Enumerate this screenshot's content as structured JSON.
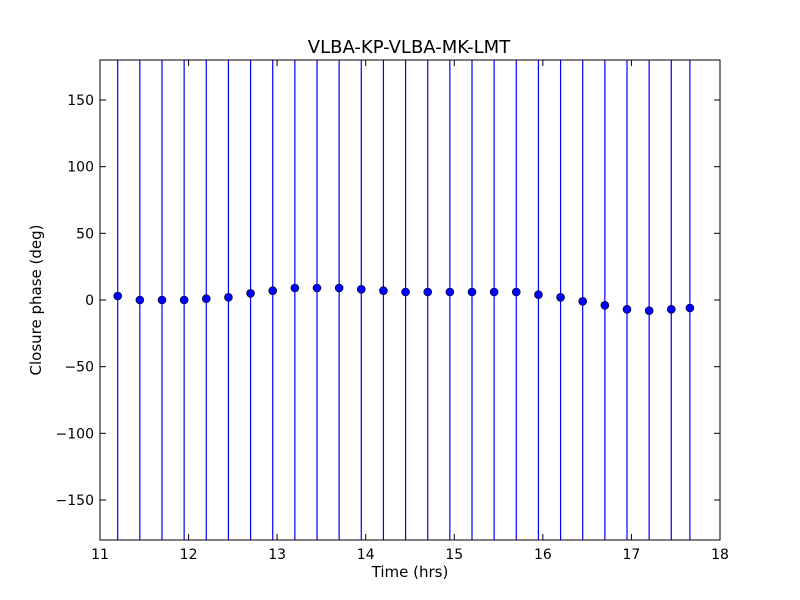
{
  "chart_data": {
    "type": "scatter",
    "title": "VLBA-KP-VLBA-MK-LMT",
    "xlabel": "Time (hrs)",
    "ylabel": "Closure phase (deg)",
    "xlim": [
      11,
      18
    ],
    "ylim": [
      -180,
      180
    ],
    "xticks": [
      11,
      12,
      13,
      14,
      15,
      16,
      17,
      18
    ],
    "yticks": [
      -150,
      -100,
      -50,
      0,
      50,
      100,
      150
    ],
    "ytick_labels": [
      "−150",
      "−100",
      "−50",
      "0",
      "50",
      "100",
      "150"
    ],
    "grid": false,
    "series": [
      {
        "marker": "circle",
        "color": "#0000ff",
        "errorbar_color": "#0000ff",
        "points": [
          {
            "x": 11.2,
            "y": 3,
            "err_low": -180,
            "err_high": 180
          },
          {
            "x": 11.45,
            "y": 0,
            "err_low": -180,
            "err_high": 180
          },
          {
            "x": 11.7,
            "y": 0,
            "err_low": -180,
            "err_high": 180
          },
          {
            "x": 11.95,
            "y": 0,
            "err_low": -180,
            "err_high": 180
          },
          {
            "x": 12.2,
            "y": 1,
            "err_low": -180,
            "err_high": 180
          },
          {
            "x": 12.45,
            "y": 2,
            "err_low": -180,
            "err_high": 180
          },
          {
            "x": 12.7,
            "y": 5,
            "err_low": -180,
            "err_high": 180
          },
          {
            "x": 12.95,
            "y": 7,
            "err_low": -180,
            "err_high": 180
          },
          {
            "x": 13.2,
            "y": 9,
            "err_low": -180,
            "err_high": 180
          },
          {
            "x": 13.45,
            "y": 9,
            "err_low": -180,
            "err_high": 180
          },
          {
            "x": 13.7,
            "y": 9,
            "err_low": -180,
            "err_high": 180
          },
          {
            "x": 13.95,
            "y": 8,
            "err_low": -180,
            "err_high": 180
          },
          {
            "x": 14.2,
            "y": 7,
            "err_low": -180,
            "err_high": 180
          },
          {
            "x": 14.45,
            "y": 6,
            "err_low": -180,
            "err_high": 180
          },
          {
            "x": 14.7,
            "y": 6,
            "err_low": -180,
            "err_high": 180
          },
          {
            "x": 14.95,
            "y": 6,
            "err_low": -180,
            "err_high": 180
          },
          {
            "x": 15.2,
            "y": 6,
            "err_low": -180,
            "err_high": 180
          },
          {
            "x": 15.45,
            "y": 6,
            "err_low": -180,
            "err_high": 180
          },
          {
            "x": 15.7,
            "y": 6,
            "err_low": -180,
            "err_high": 180
          },
          {
            "x": 15.95,
            "y": 4,
            "err_low": -180,
            "err_high": 180
          },
          {
            "x": 16.2,
            "y": 2,
            "err_low": -180,
            "err_high": 180
          },
          {
            "x": 16.45,
            "y": -1,
            "err_low": -180,
            "err_high": 180
          },
          {
            "x": 16.7,
            "y": -4,
            "err_low": -180,
            "err_high": 180
          },
          {
            "x": 16.95,
            "y": -7,
            "err_low": -180,
            "err_high": 180
          },
          {
            "x": 17.2,
            "y": -8,
            "err_low": -180,
            "err_high": 180
          },
          {
            "x": 17.45,
            "y": -7,
            "err_low": -180,
            "err_high": 180
          },
          {
            "x": 17.66,
            "y": -6,
            "err_low": -180,
            "err_high": 180
          }
        ]
      }
    ]
  }
}
